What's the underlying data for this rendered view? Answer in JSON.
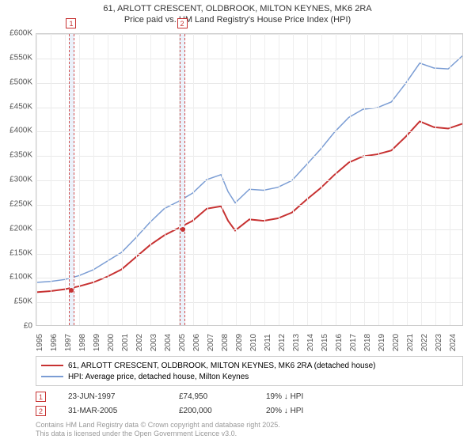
{
  "title_line1": "61, ARLOTT CRESCENT, OLDBROOK, MILTON KEYNES, MK6 2RA",
  "title_line2": "Price paid vs. HM Land Registry's House Price Index (HPI)",
  "chart": {
    "type": "line",
    "background_color": "#ffffff",
    "grid_color": "#e8e8e8",
    "vgrid_color": "#eeeeee",
    "marker_band_color": "#eaf1fa",
    "marker_border_color": "#d05050",
    "ylim": [
      0,
      600000
    ],
    "ytick_step": 50000,
    "yticks": [
      "£0",
      "£50K",
      "£100K",
      "£150K",
      "£200K",
      "£250K",
      "£300K",
      "£350K",
      "£400K",
      "£450K",
      "£500K",
      "£550K",
      "£600K"
    ],
    "xmin": 1995,
    "xmax": 2025,
    "xticks": [
      1995,
      1996,
      1997,
      1998,
      1999,
      2000,
      2001,
      2002,
      2003,
      2004,
      2005,
      2006,
      2007,
      2008,
      2009,
      2010,
      2011,
      2012,
      2013,
      2014,
      2015,
      2016,
      2017,
      2018,
      2019,
      2020,
      2021,
      2022,
      2023,
      2024
    ],
    "tick_fontsize": 10,
    "series": [
      {
        "name": "property",
        "label": "61, ARLOTT CRESCENT, OLDBROOK, MILTON KEYNES, MK6 2RA (detached house)",
        "color": "#c73232",
        "line_width": 2,
        "points": [
          [
            1995,
            68000
          ],
          [
            1996,
            70000
          ],
          [
            1997,
            74000
          ],
          [
            1998,
            80000
          ],
          [
            1999,
            88000
          ],
          [
            2000,
            100000
          ],
          [
            2001,
            115000
          ],
          [
            2002,
            140000
          ],
          [
            2003,
            165000
          ],
          [
            2004,
            185000
          ],
          [
            2005,
            200000
          ],
          [
            2006,
            215000
          ],
          [
            2007,
            240000
          ],
          [
            2008,
            245000
          ],
          [
            2008.5,
            215000
          ],
          [
            2009,
            195000
          ],
          [
            2010,
            218000
          ],
          [
            2011,
            215000
          ],
          [
            2012,
            220000
          ],
          [
            2013,
            232000
          ],
          [
            2014,
            258000
          ],
          [
            2015,
            282000
          ],
          [
            2016,
            310000
          ],
          [
            2017,
            335000
          ],
          [
            2018,
            348000
          ],
          [
            2019,
            352000
          ],
          [
            2020,
            360000
          ],
          [
            2021,
            388000
          ],
          [
            2022,
            420000
          ],
          [
            2023,
            408000
          ],
          [
            2024,
            405000
          ],
          [
            2025,
            415000
          ]
        ]
      },
      {
        "name": "hpi",
        "label": "HPI: Average price, detached house, Milton Keynes",
        "color": "#7b9dd4",
        "line_width": 1.5,
        "points": [
          [
            1995,
            88000
          ],
          [
            1996,
            90000
          ],
          [
            1997,
            94000
          ],
          [
            1998,
            102000
          ],
          [
            1999,
            114000
          ],
          [
            2000,
            132000
          ],
          [
            2001,
            150000
          ],
          [
            2002,
            180000
          ],
          [
            2003,
            212000
          ],
          [
            2004,
            240000
          ],
          [
            2005,
            255000
          ],
          [
            2006,
            272000
          ],
          [
            2007,
            300000
          ],
          [
            2008,
            310000
          ],
          [
            2008.5,
            275000
          ],
          [
            2009,
            252000
          ],
          [
            2010,
            280000
          ],
          [
            2011,
            278000
          ],
          [
            2012,
            284000
          ],
          [
            2013,
            298000
          ],
          [
            2014,
            330000
          ],
          [
            2015,
            362000
          ],
          [
            2016,
            398000
          ],
          [
            2017,
            428000
          ],
          [
            2018,
            445000
          ],
          [
            2019,
            448000
          ],
          [
            2020,
            460000
          ],
          [
            2021,
            498000
          ],
          [
            2022,
            540000
          ],
          [
            2023,
            530000
          ],
          [
            2024,
            528000
          ],
          [
            2025,
            555000
          ]
        ]
      }
    ],
    "markers": [
      {
        "num": "1",
        "year": 1997.47,
        "band_width_years": 0.4
      },
      {
        "num": "2",
        "year": 2005.25,
        "band_width_years": 0.4
      }
    ],
    "sales": [
      {
        "num": "1",
        "year": 1997.47,
        "price": 74950,
        "color": "#c73232"
      },
      {
        "num": "2",
        "year": 2005.25,
        "price": 200000,
        "color": "#c73232"
      }
    ]
  },
  "legend": {
    "series1_color": "#c73232",
    "series1_label": "61, ARLOTT CRESCENT, OLDBROOK, MILTON KEYNES, MK6 2RA (detached house)",
    "series2_color": "#7b9dd4",
    "series2_label": "HPI: Average price, detached house, Milton Keynes"
  },
  "info_rows": [
    {
      "num": "1",
      "date": "23-JUN-1997",
      "price": "£74,950",
      "pct": "19% ↓ HPI"
    },
    {
      "num": "2",
      "date": "31-MAR-2005",
      "price": "£200,000",
      "pct": "20% ↓ HPI"
    }
  ],
  "footer_line1": "Contains HM Land Registry data © Crown copyright and database right 2025.",
  "footer_line2": "This data is licensed under the Open Government Licence v3.0."
}
